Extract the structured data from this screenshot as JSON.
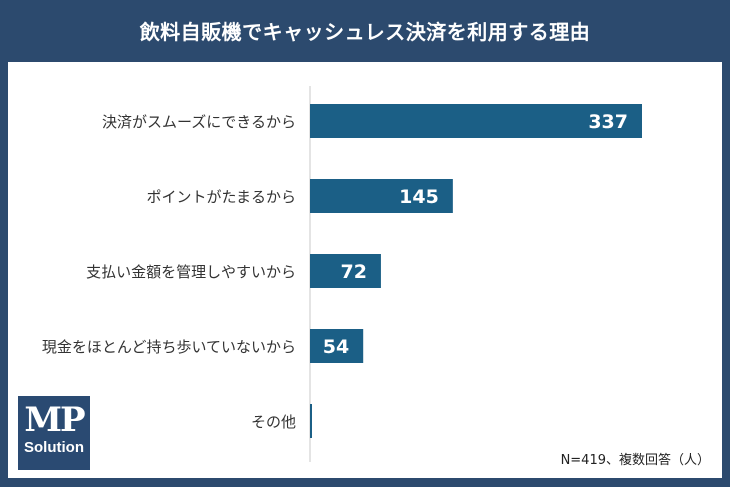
{
  "chart_data": {
    "type": "bar",
    "orientation": "horizontal",
    "title": "飲料自販機でキャッシュレス決済を利用する理由",
    "categories": [
      "決済がスムーズにできるから",
      "ポイントがたまるから",
      "支払い金額を管理しやすいから",
      "現金をほとんど持ち歩いていないから",
      "その他"
    ],
    "values": [
      337,
      145,
      72,
      54,
      2
    ],
    "value_labels": [
      "337",
      "145",
      "72",
      "54",
      ""
    ],
    "xlim": [
      0,
      400
    ],
    "grid": false,
    "bar_color": "#1b5f86",
    "note": "N=419、複数回答（人）"
  },
  "logo": {
    "line1": "MP",
    "line2": "Solution"
  },
  "colors": {
    "frame": "#2c4a6e",
    "bar": "#1b5f86",
    "logo_bg": "#2a4a72"
  }
}
